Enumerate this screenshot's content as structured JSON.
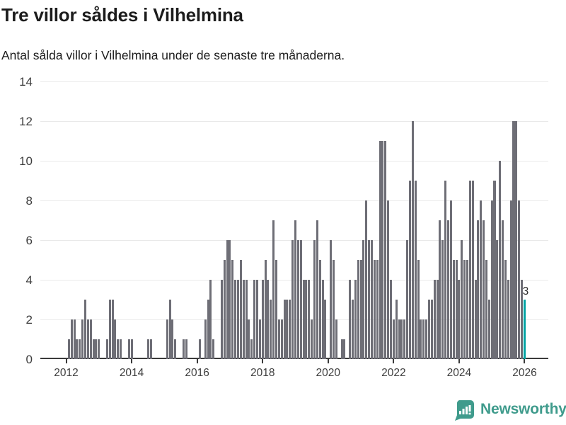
{
  "header": {
    "title": "Tre villor såldes i Vilhelmina",
    "subtitle": "Antal sålda villor i Vilhelmina under de senaste tre månaderna."
  },
  "chart_data": {
    "type": "bar",
    "title": "Tre villor såldes i Vilhelmina",
    "subtitle": "Antal sålda villor i Vilhelmina under de senaste tre månaderna.",
    "ylabel": "",
    "xlabel": "",
    "ylim": [
      0,
      14
    ],
    "y_ticks": [
      0,
      2,
      4,
      6,
      8,
      10,
      12,
      14
    ],
    "x_tick_years": [
      2012,
      2014,
      2016,
      2018,
      2020,
      2022,
      2024,
      2026
    ],
    "grid": "horizontal",
    "bar_color": "#6e6e76",
    "highlight_color": "#00a3a3",
    "x_start": "2012-01",
    "x_end": "2026-01",
    "series": [
      {
        "year": 2012,
        "values": [
          0,
          1,
          2,
          2,
          1,
          1,
          2,
          3,
          2,
          2,
          1,
          1
        ]
      },
      {
        "year": 2013,
        "values": [
          1,
          0,
          0,
          1,
          3,
          3,
          2,
          1,
          1,
          0,
          0,
          1
        ]
      },
      {
        "year": 2014,
        "values": [
          1,
          0,
          0,
          0,
          0,
          0,
          1,
          1,
          0,
          0,
          0,
          0
        ]
      },
      {
        "year": 2015,
        "values": [
          0,
          2,
          3,
          2,
          1,
          0,
          0,
          1,
          1,
          0,
          0,
          0
        ]
      },
      {
        "year": 2016,
        "values": [
          0,
          1,
          0,
          2,
          3,
          4,
          1,
          0,
          0,
          4,
          5,
          6
        ]
      },
      {
        "year": 2017,
        "values": [
          6,
          5,
          4,
          4,
          5,
          4,
          4,
          2,
          1,
          4,
          4,
          2
        ]
      },
      {
        "year": 2018,
        "values": [
          4,
          5,
          4,
          3,
          7,
          5,
          2,
          2,
          3,
          3,
          3,
          6
        ]
      },
      {
        "year": 2019,
        "values": [
          7,
          6,
          6,
          4,
          4,
          4,
          2,
          6,
          7,
          5,
          4,
          3
        ]
      },
      {
        "year": 2020,
        "values": [
          0,
          6,
          5,
          2,
          0,
          1,
          1,
          0,
          4,
          3,
          4,
          5
        ]
      },
      {
        "year": 2021,
        "values": [
          5,
          6,
          8,
          6,
          6,
          5,
          5,
          11,
          11,
          11,
          8,
          4
        ]
      },
      {
        "year": 2022,
        "values": [
          2,
          3,
          2,
          2,
          2,
          6,
          9,
          12,
          9,
          5,
          2,
          2
        ]
      },
      {
        "year": 2023,
        "values": [
          2,
          3,
          3,
          4,
          4,
          7,
          6,
          9,
          7,
          8,
          5,
          5
        ]
      },
      {
        "year": 2024,
        "values": [
          4,
          6,
          5,
          5,
          9,
          9,
          4,
          7,
          8,
          7,
          5,
          3
        ]
      },
      {
        "year": 2025,
        "values": [
          8,
          9,
          6,
          10,
          7,
          5,
          4,
          8,
          12,
          12,
          8,
          4
        ]
      },
      {
        "year": 2026,
        "values": [
          3
        ]
      }
    ],
    "highlight_last_bar": true,
    "highlight_value_label": "3",
    "legend": "none"
  },
  "footer": {
    "brand": "Newsworthy",
    "brand_color": "#3f9b8c",
    "logo_icon": "newsworthy-speech-bubble-bar-chart-icon"
  }
}
